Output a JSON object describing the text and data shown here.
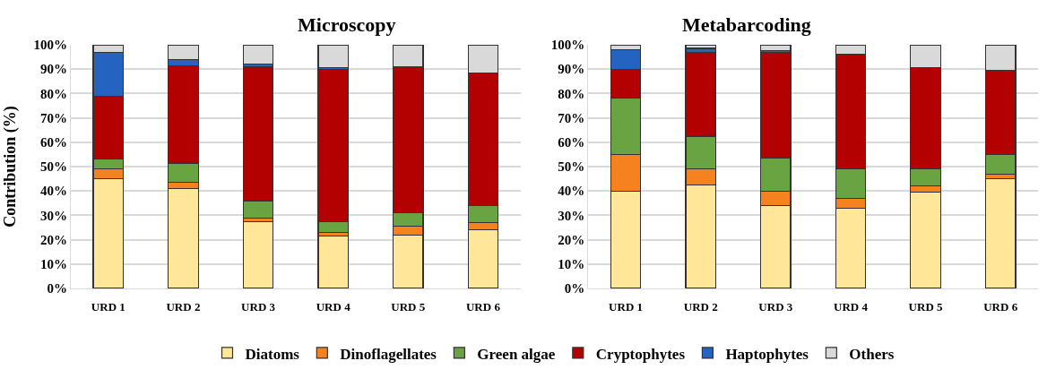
{
  "chart_data": [
    {
      "type": "bar",
      "stacked": true,
      "title": "Microscopy",
      "ylabel": "Contribution (%)",
      "categories": [
        "URD 1",
        "URD 2",
        "URD 3",
        "URD 4",
        "URD 5",
        "URD 6"
      ],
      "ylim": [
        0,
        100
      ],
      "yticks": [
        {
          "value": 0,
          "label": "0%"
        },
        {
          "value": 10,
          "label": "10%"
        },
        {
          "value": 20,
          "label": "20%"
        },
        {
          "value": 30,
          "label": "30%"
        },
        {
          "value": 40,
          "label": "40%"
        },
        {
          "value": 50,
          "label": "50%"
        },
        {
          "value": 60,
          "label": "60%"
        },
        {
          "value": 70,
          "label": "70%"
        },
        {
          "value": 80,
          "label": "80%"
        },
        {
          "value": 90,
          "label": "90%"
        },
        {
          "value": 100,
          "label": "100%"
        }
      ],
      "grid": "y",
      "legend": "bottom",
      "series": [
        {
          "name": "Diatoms",
          "color": "#ffe699",
          "values": [
            45,
            41,
            27.5,
            21.5,
            22,
            24
          ]
        },
        {
          "name": "Dinoflagellates",
          "color": "#f5821f",
          "values": [
            4,
            2.5,
            1.5,
            1.5,
            3.5,
            3
          ]
        },
        {
          "name": "Green algae",
          "color": "#6aa342",
          "values": [
            4,
            8,
            7,
            4.5,
            5.5,
            7
          ]
        },
        {
          "name": "Cryptophytes",
          "color": "#b30000",
          "values": [
            26,
            40,
            55,
            62.5,
            60,
            54.5
          ]
        },
        {
          "name": "Haptophytes",
          "color": "#2563c0",
          "values": [
            18,
            2.5,
            1,
            0.5,
            0,
            0
          ]
        },
        {
          "name": "Others",
          "color": "#d9d9d9",
          "values": [
            3,
            6,
            8,
            9.5,
            9,
            11.5
          ]
        }
      ]
    },
    {
      "type": "bar",
      "stacked": true,
      "title": "Metabarcoding",
      "categories": [
        "URD 1",
        "URD 2",
        "URD 3",
        "URD 4",
        "URD 5",
        "URD 6"
      ],
      "ylim": [
        0,
        100
      ],
      "yticks": [
        {
          "value": 0,
          "label": "0%"
        },
        {
          "value": 10,
          "label": "10%"
        },
        {
          "value": 20,
          "label": "20%"
        },
        {
          "value": 30,
          "label": "30%"
        },
        {
          "value": 40,
          "label": "40%"
        },
        {
          "value": 50,
          "label": "50%"
        },
        {
          "value": 60,
          "label": "60%"
        },
        {
          "value": 70,
          "label": "70%"
        },
        {
          "value": 80,
          "label": "80%"
        },
        {
          "value": 90,
          "label": "90%"
        },
        {
          "value": 100,
          "label": "100%"
        }
      ],
      "grid": "y",
      "series": [
        {
          "color": "#ffe699",
          "values": [
            40,
            42.5,
            34,
            33,
            39.5,
            45
          ]
        },
        {
          "color": "#f5821f",
          "values": [
            15,
            6.5,
            6,
            4,
            2.5,
            2
          ]
        },
        {
          "color": "#6aa342",
          "values": [
            23,
            13.5,
            13.5,
            12,
            7,
            8
          ]
        },
        {
          "color": "#b30000",
          "values": [
            12,
            34.5,
            43.5,
            47,
            41.5,
            34.5
          ]
        },
        {
          "color": "#2563c0",
          "values": [
            8,
            1.5,
            0.5,
            0,
            0,
            0
          ]
        },
        {
          "color": "#d9d9d9",
          "values": [
            2,
            1.5,
            2.5,
            4,
            9.5,
            10.5
          ]
        }
      ]
    }
  ]
}
